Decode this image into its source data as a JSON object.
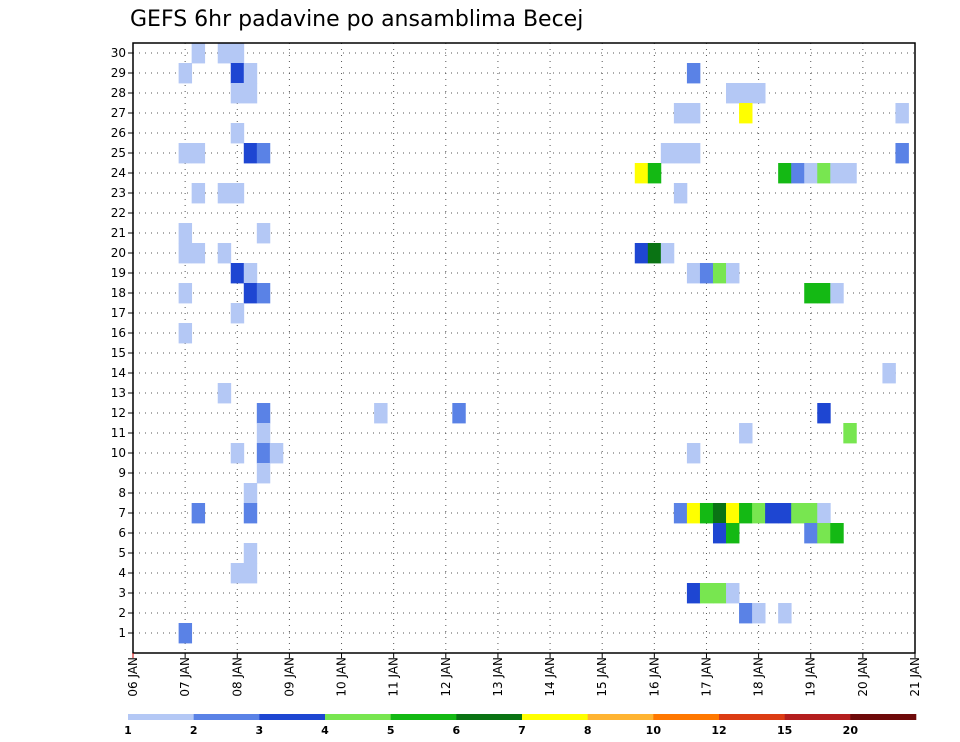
{
  "chart_data": {
    "type": "heatmap",
    "title": "GEFS 6hr padavine po ansamblima Becej",
    "xlabel": "",
    "ylabel": "",
    "x_range_days": [
      0,
      15
    ],
    "x_ticks": [
      "06 JAN",
      "07 JAN",
      "08 JAN",
      "09 JAN",
      "10 JAN",
      "11 JAN",
      "12 JAN",
      "13 JAN",
      "14 JAN",
      "15 JAN",
      "16 JAN",
      "17 JAN",
      "18 JAN",
      "19 JAN",
      "20 JAN",
      "21 JAN"
    ],
    "y_ticks": [
      "1",
      "2",
      "3",
      "4",
      "5",
      "6",
      "7",
      "8",
      "9",
      "10",
      "11",
      "12",
      "13",
      "14",
      "15",
      "16",
      "17",
      "18",
      "19",
      "20",
      "21",
      "22",
      "23",
      "24",
      "25",
      "26",
      "27",
      "28",
      "29",
      "30"
    ],
    "grid": true,
    "colorbar": {
      "labels": [
        "1",
        "2",
        "3",
        "4",
        "5",
        "6",
        "7",
        "8",
        "10",
        "12",
        "15",
        "20"
      ],
      "colors": [
        "#b4c8f5",
        "#5a82e6",
        "#1e46d2",
        "#78e650",
        "#14b914",
        "#0a7314",
        "#ffff00",
        "#ffb432",
        "#ff7800",
        "#dc3c14",
        "#b41e1e",
        "#6e0a0a"
      ]
    },
    "cells": [
      {
        "member": 30,
        "day": 1.25,
        "cat": 1
      },
      {
        "member": 30,
        "day": 1.75,
        "cat": 1
      },
      {
        "member": 30,
        "day": 2.0,
        "cat": 1
      },
      {
        "member": 29,
        "day": 1.0,
        "cat": 1
      },
      {
        "member": 29,
        "day": 2.0,
        "cat": 3
      },
      {
        "member": 29,
        "day": 2.25,
        "cat": 1
      },
      {
        "member": 29,
        "day": 10.75,
        "cat": 2
      },
      {
        "member": 28,
        "day": 2.0,
        "cat": 1
      },
      {
        "member": 28,
        "day": 2.25,
        "cat": 1
      },
      {
        "member": 28,
        "day": 11.5,
        "cat": 1
      },
      {
        "member": 28,
        "day": 11.75,
        "cat": 1
      },
      {
        "member": 28,
        "day": 12.0,
        "cat": 1
      },
      {
        "member": 27,
        "day": 10.5,
        "cat": 1
      },
      {
        "member": 27,
        "day": 10.75,
        "cat": 1
      },
      {
        "member": 27,
        "day": 11.75,
        "cat": 7
      },
      {
        "member": 27,
        "day": 14.75,
        "cat": 1
      },
      {
        "member": 26,
        "day": 2.0,
        "cat": 1
      },
      {
        "member": 25,
        "day": 1.0,
        "cat": 1
      },
      {
        "member": 25,
        "day": 1.25,
        "cat": 1
      },
      {
        "member": 25,
        "day": 2.25,
        "cat": 3
      },
      {
        "member": 25,
        "day": 2.5,
        "cat": 2
      },
      {
        "member": 25,
        "day": 10.25,
        "cat": 1
      },
      {
        "member": 25,
        "day": 10.5,
        "cat": 1
      },
      {
        "member": 25,
        "day": 10.75,
        "cat": 1
      },
      {
        "member": 25,
        "day": 14.75,
        "cat": 2
      },
      {
        "member": 24,
        "day": 9.75,
        "cat": 7
      },
      {
        "member": 24,
        "day": 10.0,
        "cat": 5
      },
      {
        "member": 24,
        "day": 12.5,
        "cat": 5
      },
      {
        "member": 24,
        "day": 12.75,
        "cat": 2
      },
      {
        "member": 24,
        "day": 13.0,
        "cat": 1
      },
      {
        "member": 24,
        "day": 13.25,
        "cat": 4
      },
      {
        "member": 24,
        "day": 13.5,
        "cat": 1
      },
      {
        "member": 24,
        "day": 13.75,
        "cat": 1
      },
      {
        "member": 23,
        "day": 1.25,
        "cat": 1
      },
      {
        "member": 23,
        "day": 1.75,
        "cat": 1
      },
      {
        "member": 23,
        "day": 2.0,
        "cat": 1
      },
      {
        "member": 23,
        "day": 10.5,
        "cat": 1
      },
      {
        "member": 21,
        "day": 1.0,
        "cat": 1
      },
      {
        "member": 21,
        "day": 2.5,
        "cat": 1
      },
      {
        "member": 20,
        "day": 1.0,
        "cat": 1
      },
      {
        "member": 20,
        "day": 1.25,
        "cat": 1
      },
      {
        "member": 20,
        "day": 1.75,
        "cat": 1
      },
      {
        "member": 20,
        "day": 9.75,
        "cat": 3
      },
      {
        "member": 20,
        "day": 10.0,
        "cat": 6
      },
      {
        "member": 20,
        "day": 10.25,
        "cat": 1
      },
      {
        "member": 19,
        "day": 2.0,
        "cat": 3
      },
      {
        "member": 19,
        "day": 2.25,
        "cat": 1
      },
      {
        "member": 19,
        "day": 10.75,
        "cat": 1
      },
      {
        "member": 19,
        "day": 11.0,
        "cat": 2
      },
      {
        "member": 19,
        "day": 11.25,
        "cat": 4
      },
      {
        "member": 19,
        "day": 11.5,
        "cat": 1
      },
      {
        "member": 18,
        "day": 1.0,
        "cat": 1
      },
      {
        "member": 18,
        "day": 2.25,
        "cat": 3
      },
      {
        "member": 18,
        "day": 2.5,
        "cat": 2
      },
      {
        "member": 18,
        "day": 13.0,
        "cat": 5
      },
      {
        "member": 18,
        "day": 13.25,
        "cat": 5
      },
      {
        "member": 18,
        "day": 13.5,
        "cat": 1
      },
      {
        "member": 17,
        "day": 2.0,
        "cat": 1
      },
      {
        "member": 16,
        "day": 1.0,
        "cat": 1
      },
      {
        "member": 14,
        "day": 14.5,
        "cat": 1
      },
      {
        "member": 13,
        "day": 1.75,
        "cat": 1
      },
      {
        "member": 12,
        "day": 2.5,
        "cat": 2
      },
      {
        "member": 12,
        "day": 4.75,
        "cat": 1
      },
      {
        "member": 12,
        "day": 6.25,
        "cat": 2
      },
      {
        "member": 12,
        "day": 13.25,
        "cat": 3
      },
      {
        "member": 11,
        "day": 2.5,
        "cat": 1
      },
      {
        "member": 11,
        "day": 11.75,
        "cat": 1
      },
      {
        "member": 11,
        "day": 13.75,
        "cat": 4
      },
      {
        "member": 10,
        "day": 2.0,
        "cat": 1
      },
      {
        "member": 10,
        "day": 2.5,
        "cat": 2
      },
      {
        "member": 10,
        "day": 2.75,
        "cat": 1
      },
      {
        "member": 10,
        "day": 10.75,
        "cat": 1
      },
      {
        "member": 9,
        "day": 2.5,
        "cat": 1
      },
      {
        "member": 8,
        "day": 2.25,
        "cat": 1
      },
      {
        "member": 7,
        "day": 1.25,
        "cat": 2
      },
      {
        "member": 7,
        "day": 2.25,
        "cat": 2
      },
      {
        "member": 7,
        "day": 10.5,
        "cat": 2
      },
      {
        "member": 7,
        "day": 10.75,
        "cat": 7
      },
      {
        "member": 7,
        "day": 11.0,
        "cat": 5
      },
      {
        "member": 7,
        "day": 11.25,
        "cat": 6
      },
      {
        "member": 7,
        "day": 11.5,
        "cat": 7
      },
      {
        "member": 7,
        "day": 11.75,
        "cat": 5
      },
      {
        "member": 7,
        "day": 12.0,
        "cat": 4
      },
      {
        "member": 7,
        "day": 12.25,
        "cat": 3
      },
      {
        "member": 7,
        "day": 12.5,
        "cat": 3
      },
      {
        "member": 7,
        "day": 12.75,
        "cat": 4
      },
      {
        "member": 7,
        "day": 13.0,
        "cat": 4
      },
      {
        "member": 7,
        "day": 13.25,
        "cat": 1
      },
      {
        "member": 6,
        "day": 11.25,
        "cat": 3
      },
      {
        "member": 6,
        "day": 11.5,
        "cat": 5
      },
      {
        "member": 6,
        "day": 13.0,
        "cat": 2
      },
      {
        "member": 6,
        "day": 13.25,
        "cat": 4
      },
      {
        "member": 6,
        "day": 13.5,
        "cat": 5
      },
      {
        "member": 5,
        "day": 2.25,
        "cat": 1
      },
      {
        "member": 4,
        "day": 2.0,
        "cat": 1
      },
      {
        "member": 4,
        "day": 2.25,
        "cat": 1
      },
      {
        "member": 3,
        "day": 10.75,
        "cat": 3
      },
      {
        "member": 3,
        "day": 11.0,
        "cat": 4
      },
      {
        "member": 3,
        "day": 11.25,
        "cat": 4
      },
      {
        "member": 3,
        "day": 11.5,
        "cat": 1
      },
      {
        "member": 2,
        "day": 11.75,
        "cat": 2
      },
      {
        "member": 2,
        "day": 12.0,
        "cat": 1
      },
      {
        "member": 2,
        "day": 12.5,
        "cat": 1
      },
      {
        "member": 1,
        "day": 1.0,
        "cat": 2
      }
    ]
  }
}
